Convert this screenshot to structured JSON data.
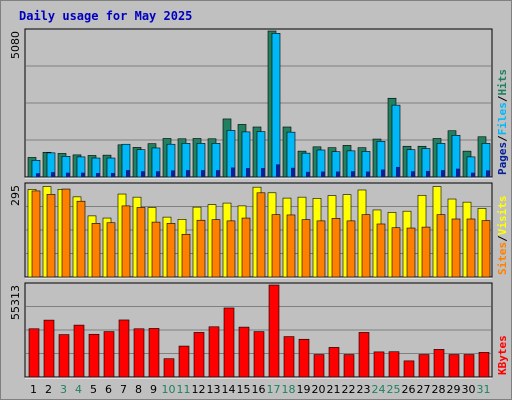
{
  "chart_data": {
    "type": "bar",
    "title": "Daily usage for May 2025",
    "categories": [
      "1",
      "2",
      "3",
      "4",
      "5",
      "6",
      "7",
      "8",
      "9",
      "10",
      "11",
      "12",
      "13",
      "14",
      "15",
      "16",
      "17",
      "18",
      "19",
      "20",
      "21",
      "22",
      "23",
      "24",
      "25",
      "26",
      "27",
      "28",
      "29",
      "30",
      "31"
    ],
    "weekend_days": [
      "3",
      "4",
      "10",
      "11",
      "17",
      "18",
      "24",
      "25",
      "31"
    ],
    "colors": {
      "background": "#c0c0c0",
      "plot_background": "#c0c0c0",
      "grid": "#808080",
      "title": "#0000c0",
      "hits": "#208060",
      "files": "#00b8f8",
      "pages": "#082098",
      "visits": "#ffff00",
      "sites": "#ff8000",
      "kbytes": "#ff0000",
      "weekday_label": "#000000",
      "weekend_label": "#208060"
    },
    "panels": [
      {
        "name": "hits-files-pages",
        "ymax_label": "5080",
        "ylim": [
          0,
          5080
        ],
        "legend": [
          "Pages",
          "Files",
          "Hits"
        ],
        "series": [
          {
            "name": "Hits",
            "values": [
              680,
              860,
              820,
              770,
              750,
              760,
              1120,
              1030,
              1160,
              1340,
              1330,
              1340,
              1330,
              2020,
              1830,
              1740,
              5080,
              1740,
              900,
              1050,
              1020,
              1100,
              1020,
              1320,
              2740,
              1070,
              1070,
              1340,
              1610,
              900,
              1400
            ]
          },
          {
            "name": "Files",
            "values": [
              580,
              840,
              720,
              700,
              660,
              660,
              1140,
              950,
              1010,
              1140,
              1170,
              1170,
              1170,
              1620,
              1570,
              1580,
              5000,
              1560,
              830,
              940,
              880,
              910,
              890,
              1240,
              2500,
              950,
              990,
              1170,
              1450,
              700,
              1170
            ]
          },
          {
            "name": "Pages",
            "values": [
              130,
              170,
              150,
              150,
              140,
              140,
              240,
              200,
              200,
              230,
              240,
              240,
              240,
              330,
              310,
              310,
              440,
              320,
              180,
              190,
              190,
              200,
              190,
              260,
              350,
              200,
              210,
              240,
              290,
              150,
              230
            ]
          }
        ]
      },
      {
        "name": "visits-sites",
        "ymax_label": "295",
        "ylim": [
          0,
          295
        ],
        "legend": [
          "Sites",
          "Visits"
        ],
        "series": [
          {
            "name": "Visits",
            "values": [
              281,
              290,
              281,
              257,
              196,
              189,
              266,
              256,
              223,
              192,
              185,
              224,
              232,
              237,
              228,
              288,
              270,
              253,
              256,
              252,
              261,
              264,
              279,
              215,
              207,
              211,
              262,
              290,
              250,
              240,
              220
            ]
          },
          {
            "name": "Sites",
            "values": [
              276,
              265,
              282,
              243,
              172,
              174,
              228,
              223,
              176,
              172,
              137,
              182,
              184,
              180,
              189,
              270,
              200,
              199,
              184,
              180,
              188,
              180,
              200,
              170,
              158,
              157,
              160,
              200,
              186,
              186,
              181
            ]
          }
        ]
      },
      {
        "name": "kbytes",
        "ymax_label": "55313",
        "ylim": [
          0,
          55313
        ],
        "legend": [
          "KBytes"
        ],
        "series": [
          {
            "name": "KBytes",
            "values": [
              29000,
              34200,
              25500,
              31200,
              25700,
              27300,
              34300,
              29000,
              29200,
              11000,
              18600,
              26800,
              30200,
              41500,
              30000,
              27300,
              55313,
              24300,
              22700,
              13500,
              17800,
              13500,
              26800,
              15100,
              15200,
              9700,
              13500,
              16600,
              13500,
              13500,
              14800
            ]
          }
        ]
      }
    ]
  }
}
